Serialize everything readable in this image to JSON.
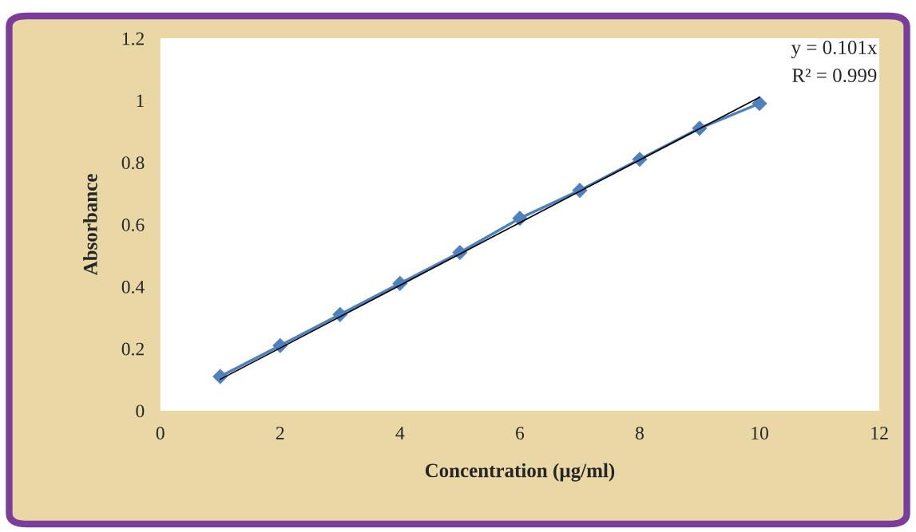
{
  "chart_data": {
    "type": "line",
    "xlabel": "Concentration (µg/ml)",
    "ylabel": "Absorbance",
    "x": [
      1,
      2,
      3,
      4,
      5,
      6,
      7,
      8,
      9,
      10
    ],
    "series": [
      {
        "color": "#4f81bd",
        "marker": "diamond",
        "values": [
          0.11,
          0.21,
          0.31,
          0.41,
          0.51,
          0.62,
          0.71,
          0.81,
          0.91,
          0.99
        ]
      },
      {
        "color": "#000000",
        "marker": "none",
        "x": [
          1,
          10
        ],
        "values": [
          0.101,
          1.01
        ]
      }
    ],
    "annotations": [
      "y = 0.101x",
      "R² = 0.999"
    ],
    "xlim": [
      0,
      12
    ],
    "xticks": [
      0,
      2,
      4,
      6,
      8,
      10,
      12
    ],
    "ylim": [
      0,
      1.2
    ],
    "yticks": [
      0,
      0.2,
      0.4,
      0.6,
      0.8,
      1,
      1.2
    ],
    "grid": false,
    "legend": false
  }
}
